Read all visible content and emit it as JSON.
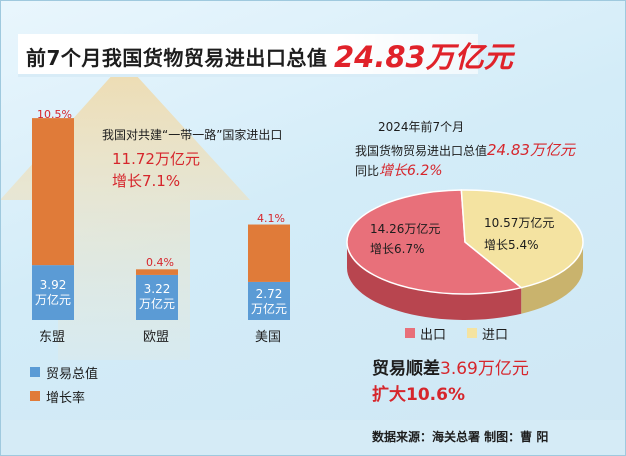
{
  "title": {
    "text": "前7个月我国货物贸易进出口总值",
    "value": "24.83万亿元"
  },
  "belt_road": {
    "label": "我国对共建“一带一路”国家进出口",
    "value": "11.72万亿元",
    "growth": "增长7.1%"
  },
  "pie_info": {
    "period": "2024年前7个月",
    "line1": "我国货物贸易进出口总值",
    "line1_value": "24.83万亿元",
    "line2": "同比",
    "line2_value": "增长6.2%"
  },
  "surplus": {
    "label": "贸易顺差",
    "value": "3.69万亿元",
    "growth": "扩大10.6%"
  },
  "source": "数据来源：海关总署    制图：曹  阳",
  "colors": {
    "trade": "#5b9bd5",
    "growth": "#e07b39",
    "export": "#e8707a",
    "import": "#f4e3a1",
    "accent": "#e0222a"
  },
  "chart_data": [
    {
      "type": "bar",
      "categories": [
        "东盟",
        "欧盟",
        "美国"
      ],
      "series": [
        {
          "name": "贸易总值",
          "values": [
            3.92,
            3.22,
            2.72
          ],
          "labels": [
            "3.92\n万亿元",
            "3.22\n万亿元",
            "2.72\n万亿元"
          ]
        },
        {
          "name": "增长率",
          "values": [
            10.5,
            0.4,
            4.1
          ],
          "labels": [
            "10.5%",
            "0.4%",
            "4.1%"
          ]
        }
      ],
      "stacked": true,
      "legend": [
        "贸易总值",
        "增长率"
      ]
    },
    {
      "type": "pie",
      "categories": [
        "出口",
        "进口"
      ],
      "values": [
        14.26,
        10.57
      ],
      "labels": [
        "14.26万亿元",
        "10.57万亿元"
      ],
      "growth": [
        "增长6.7%",
        "增长5.4%"
      ],
      "legend": [
        "出口",
        "进口"
      ]
    }
  ]
}
